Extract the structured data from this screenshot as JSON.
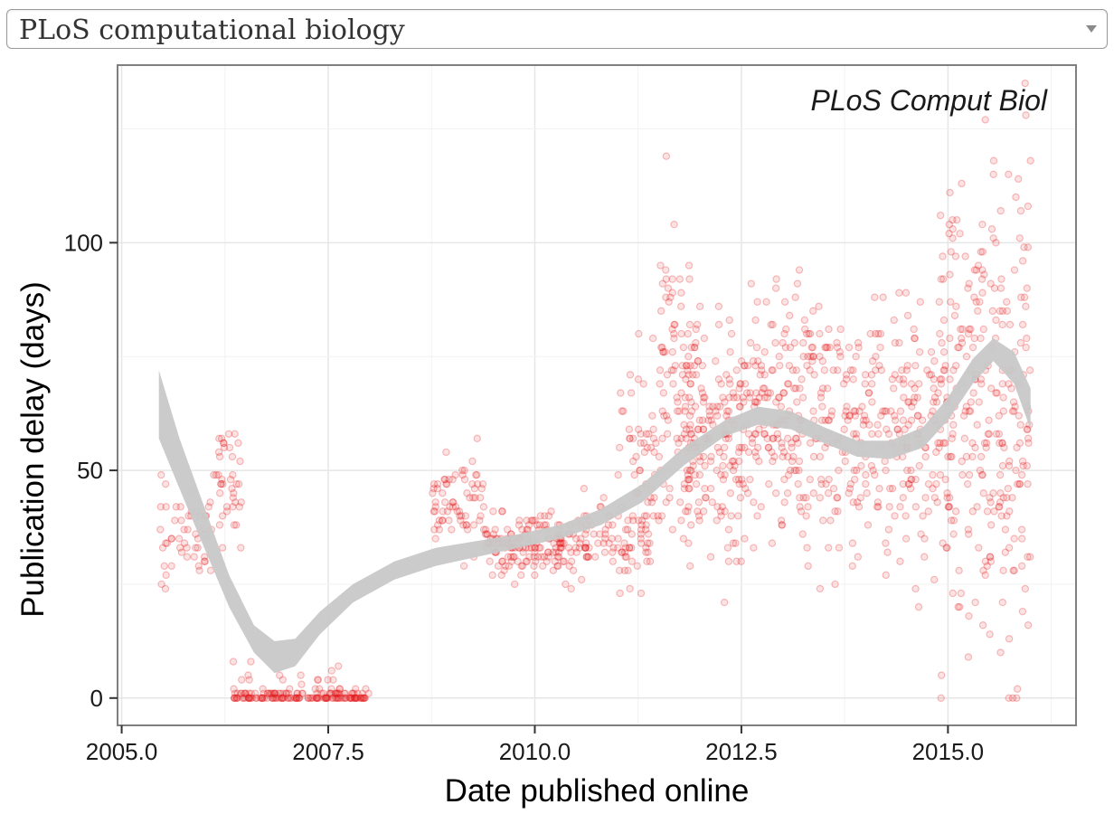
{
  "journal_select": {
    "selected": "PLoS computational biology",
    "arrow_icon": "chevron-down-icon"
  },
  "chart_data": {
    "type": "scatter",
    "title": "PLoS Comput Biol",
    "xlabel": "Date published online",
    "ylabel": "Publication delay (days)",
    "xlim": [
      2004.95,
      2016.55
    ],
    "ylim": [
      -6,
      139
    ],
    "xticks": [
      2005.0,
      2007.5,
      2010.0,
      2012.5,
      2015.0
    ],
    "xtick_labels": [
      "2005.0",
      "2007.5",
      "2010.0",
      "2012.5",
      "2015.0"
    ],
    "yticks": [
      0,
      50,
      100
    ],
    "ytick_labels": [
      "0",
      "50",
      "100"
    ],
    "grid": true,
    "point_color": "#e31a1c",
    "band_color": "#c8c8c8",
    "smooth_fit": {
      "x": [
        2005.45,
        2005.7,
        2006.0,
        2006.3,
        2006.6,
        2006.85,
        2007.1,
        2007.4,
        2007.8,
        2008.3,
        2008.8,
        2009.3,
        2009.8,
        2010.3,
        2010.8,
        2011.3,
        2011.8,
        2012.3,
        2012.7,
        2013.1,
        2013.5,
        2013.9,
        2014.3,
        2014.7,
        2015.0,
        2015.3,
        2015.55,
        2015.8,
        2016.0
      ],
      "lower": [
        57,
        46,
        33,
        20,
        10,
        5.5,
        7,
        14,
        21,
        26,
        29,
        31,
        33,
        35,
        38,
        43,
        51,
        57.5,
        60,
        59,
        56,
        53,
        52.5,
        55,
        61,
        69,
        74,
        69,
        59
      ],
      "upper": [
        72,
        57,
        42,
        27,
        16,
        12.5,
        13,
        19,
        25,
        30,
        33,
        34.5,
        36,
        38,
        41.5,
        47,
        55,
        61,
        64,
        63,
        59.5,
        56.5,
        56.5,
        59.5,
        66,
        74.5,
        79,
        76,
        68
      ]
    },
    "scatter_clusters": [
      {
        "x": [
          2005.45,
          2005.55
        ],
        "y_mean": 38,
        "y_sd": 9,
        "n": 12
      },
      {
        "x": [
          2005.6,
          2006.1
        ],
        "y_mean": 37,
        "y_sd": 5,
        "n": 40
      },
      {
        "x": [
          2006.1,
          2006.45
        ],
        "y_mean": 47,
        "y_sd": 6,
        "n": 40
      },
      {
        "x": [
          2006.35,
          2007.95
        ],
        "y_mean": 0.3,
        "y_sd": 0.6,
        "n": 150
      },
      {
        "x": [
          2006.35,
          2008.1
        ],
        "y_mean": 3,
        "y_sd": 2,
        "n": 25
      },
      {
        "x": [
          2008.75,
          2009.4
        ],
        "y_mean": 43,
        "y_sd": 5,
        "n": 70
      },
      {
        "x": [
          2009.4,
          2010.5
        ],
        "y_mean": 33,
        "y_sd": 3.5,
        "n": 160
      },
      {
        "x": [
          2010.5,
          2011.4
        ],
        "y_mean": 34,
        "y_sd": 4,
        "n": 90
      },
      {
        "x": [
          2011.0,
          2011.5
        ],
        "y_mean": 55,
        "y_sd": 10,
        "n": 50
      },
      {
        "x": [
          2011.5,
          2012.0
        ],
        "y_mean": 68,
        "y_sd": 16,
        "n": 110
      },
      {
        "x": [
          2011.8,
          2012.5
        ],
        "y_mean": 55,
        "y_sd": 12,
        "n": 150
      },
      {
        "x": [
          2012.5,
          2013.6
        ],
        "y_mean": 61,
        "y_sd": 14,
        "n": 230
      },
      {
        "x": [
          2013.6,
          2014.9
        ],
        "y_mean": 57,
        "y_sd": 14,
        "n": 230
      },
      {
        "x": [
          2014.9,
          2015.4
        ],
        "y_mean": 67,
        "y_sd": 22,
        "n": 130
      },
      {
        "x": [
          2015.4,
          2016.0
        ],
        "y_mean": 62,
        "y_sd": 28,
        "n": 160
      }
    ]
  }
}
